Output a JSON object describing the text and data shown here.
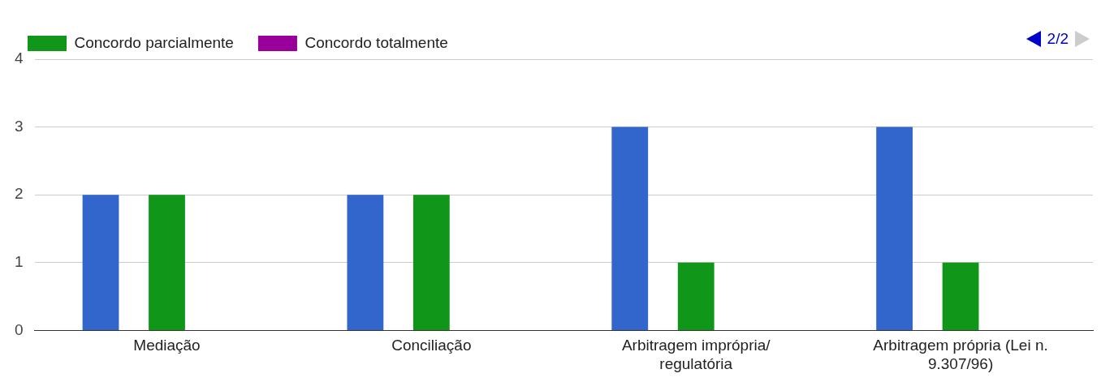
{
  "chart_data": {
    "type": "bar",
    "categories": [
      "Mediação",
      "Conciliação",
      "Arbitragem imprópria/ regulatória",
      "Arbitragem própria (Lei n. 9.307/96)"
    ],
    "series": [
      {
        "color": "#3366cc",
        "values": [
          2,
          2,
          3,
          3
        ]
      },
      {
        "name": "Concordo parcialmente",
        "color": "#109618",
        "values": [
          2,
          2,
          1,
          1
        ]
      },
      {
        "name": "Concordo totalmente",
        "color": "#990099",
        "values": [
          0,
          0,
          0,
          0
        ]
      }
    ],
    "ylim": [
      0,
      4
    ],
    "yticks": [
      0,
      1,
      2,
      3,
      4
    ],
    "grid": "y",
    "legend": "top left",
    "annotations": [
      "2/2"
    ]
  }
}
